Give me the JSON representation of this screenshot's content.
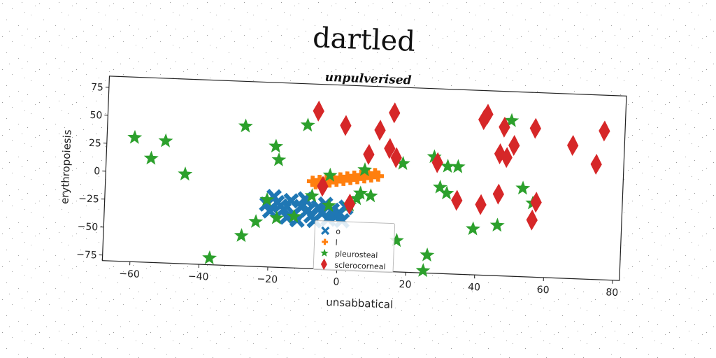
{
  "chart_data": {
    "type": "scatter",
    "title": "dartled",
    "subtitle": "unpulverised",
    "xlabel": "unsabbatical",
    "ylabel": "erythropoiesis",
    "xlim": [
      -68,
      82
    ],
    "ylim": [
      -80,
      85
    ],
    "xticks": [
      -60,
      -40,
      -20,
      0,
      20,
      40,
      60,
      80
    ],
    "yticks": [
      -75,
      -50,
      -25,
      0,
      25,
      50,
      75
    ],
    "grid": false,
    "legend_position": "bottom-center",
    "series": [
      {
        "name": "o",
        "marker": "x",
        "color": "#1f77b4",
        "points": [
          [
            -19,
            -17
          ],
          [
            -18,
            -22
          ],
          [
            -16,
            -28
          ],
          [
            -14,
            -20
          ],
          [
            -20,
            -30
          ],
          [
            -13,
            -32
          ],
          [
            -11,
            -25
          ],
          [
            -9,
            -28
          ],
          [
            -8,
            -33
          ],
          [
            -6,
            -25
          ],
          [
            -5,
            -30
          ],
          [
            -4,
            -22
          ],
          [
            -2,
            -27
          ],
          [
            -1,
            -33
          ],
          [
            0,
            -29
          ],
          [
            2,
            -24
          ],
          [
            -17,
            -25
          ],
          [
            -15,
            -35
          ],
          [
            -7,
            -37
          ],
          [
            -12,
            -37
          ],
          [
            -21,
            -24
          ],
          [
            -10,
            -18
          ],
          [
            -3,
            -35
          ],
          [
            1,
            -36
          ]
        ]
      },
      {
        "name": "l",
        "marker": "+",
        "color": "#ff7f0e",
        "points": [
          [
            -8,
            -2
          ],
          [
            -6,
            -1
          ],
          [
            -4,
            0
          ],
          [
            -2,
            1
          ],
          [
            0,
            2
          ],
          [
            2,
            3
          ],
          [
            4,
            4
          ],
          [
            6,
            5
          ],
          [
            8,
            6
          ],
          [
            10,
            7
          ],
          [
            -7,
            -4
          ],
          [
            -5,
            -3
          ],
          [
            -3,
            -2
          ],
          [
            -1,
            -1
          ],
          [
            1,
            0
          ],
          [
            3,
            1
          ],
          [
            5,
            2
          ],
          [
            7,
            3
          ],
          [
            9,
            4
          ],
          [
            11,
            5
          ]
        ]
      },
      {
        "name": "pleurosteal",
        "marker": "star",
        "color": "#2ca02c",
        "points": [
          [
            -60,
            31
          ],
          [
            -55,
            13
          ],
          [
            -51,
            29
          ],
          [
            -45,
            0
          ],
          [
            -37,
            -74
          ],
          [
            -28,
            -53
          ],
          [
            -28,
            45
          ],
          [
            -24,
            -40
          ],
          [
            -21,
            -20
          ],
          [
            -19,
            28
          ],
          [
            -18,
            16
          ],
          [
            -18,
            -36
          ],
          [
            -13,
            -34
          ],
          [
            -10,
            48
          ],
          [
            -8,
            -15
          ],
          [
            -3,
            4
          ],
          [
            -3,
            -23
          ],
          [
            3,
            -22
          ],
          [
            5,
            -16
          ],
          [
            6,
            -11
          ],
          [
            7,
            10
          ],
          [
            9,
            -13
          ],
          [
            17,
            -52
          ],
          [
            18,
            17
          ],
          [
            25,
            -78
          ],
          [
            26,
            -64
          ],
          [
            27,
            24
          ],
          [
            29,
            -3
          ],
          [
            31,
            -8
          ],
          [
            31,
            16
          ],
          [
            34,
            16
          ],
          [
            39,
            -39
          ],
          [
            46,
            -35
          ],
          [
            49,
            59
          ],
          [
            53,
            -1
          ],
          [
            56,
            -14
          ]
        ]
      },
      {
        "name": "sclerocorneal",
        "marker": "diamond",
        "color": "#d62728",
        "points": [
          [
            -7,
            61
          ],
          [
            -5,
            -6
          ],
          [
            1,
            49
          ],
          [
            3,
            -21
          ],
          [
            8,
            24
          ],
          [
            11,
            46
          ],
          [
            14,
            30
          ],
          [
            15,
            62
          ],
          [
            16,
            22
          ],
          [
            28,
            19
          ],
          [
            34,
            -14
          ],
          [
            41,
            -17
          ],
          [
            41,
            59
          ],
          [
            42,
            64
          ],
          [
            46,
            -7
          ],
          [
            46,
            29
          ],
          [
            47,
            53
          ],
          [
            48,
            26
          ],
          [
            50,
            37
          ],
          [
            56,
            -29
          ],
          [
            56,
            53
          ],
          [
            57,
            -13
          ],
          [
            67,
            39
          ],
          [
            74,
            23
          ],
          [
            76,
            53
          ]
        ]
      }
    ]
  }
}
